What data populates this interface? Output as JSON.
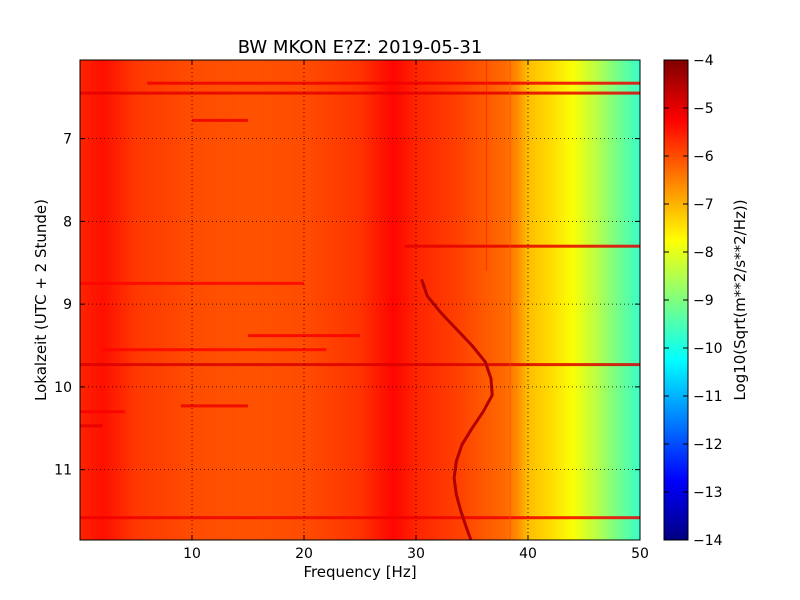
{
  "chart_data": {
    "type": "heatmap",
    "title": "BW MKON E?Z: 2019-05-31",
    "xlabel": "Frequency [Hz]",
    "ylabel": "Lokalzeit (UTC + 2 Stunde)",
    "colorbar_label": "Log10(Sqrt(m**2/s**2/Hz))",
    "xlim": [
      0,
      50
    ],
    "ylim": [
      11.85,
      6.05
    ],
    "y_inverted": true,
    "x_ticks": [
      10,
      20,
      30,
      40,
      50
    ],
    "x_tick_labels": [
      "10",
      "20",
      "30",
      "40",
      "50"
    ],
    "y_ticks": [
      7,
      8,
      9,
      10,
      11
    ],
    "y_tick_labels": [
      "7",
      "8",
      "9",
      "10",
      "11"
    ],
    "colorbar_range": [
      -14,
      -4
    ],
    "colorbar_ticks": [
      -4,
      -5,
      -6,
      -7,
      -8,
      -9,
      -10,
      -11,
      -12,
      -13,
      -14
    ],
    "colorbar_tick_labels": [
      "−4",
      "−5",
      "−6",
      "−7",
      "−8",
      "−9",
      "−10",
      "−11",
      "−12",
      "−13",
      "−14"
    ],
    "colormap": "jet",
    "grid": "dotted",
    "frequency_profile": [
      {
        "freq": 0,
        "value": -5.6
      },
      {
        "freq": 2,
        "value": -5.4
      },
      {
        "freq": 5,
        "value": -5.8
      },
      {
        "freq": 10,
        "value": -6.0
      },
      {
        "freq": 15,
        "value": -6.05
      },
      {
        "freq": 20,
        "value": -6.0
      },
      {
        "freq": 25,
        "value": -5.75
      },
      {
        "freq": 28,
        "value": -5.3
      },
      {
        "freq": 30,
        "value": -5.6
      },
      {
        "freq": 34,
        "value": -5.9
      },
      {
        "freq": 36,
        "value": -6.1
      },
      {
        "freq": 38,
        "value": -6.3
      },
      {
        "freq": 39,
        "value": -6.6
      },
      {
        "freq": 40,
        "value": -7.1
      },
      {
        "freq": 42,
        "value": -7.4
      },
      {
        "freq": 44,
        "value": -7.8
      },
      {
        "freq": 46,
        "value": -8.4
      },
      {
        "freq": 48,
        "value": -9.1
      },
      {
        "freq": 50,
        "value": -9.7
      }
    ],
    "wandering_line": [
      {
        "time": 8.7,
        "freq": 30.5
      },
      {
        "time": 8.9,
        "freq": 31.0
      },
      {
        "time": 9.1,
        "freq": 32.2
      },
      {
        "time": 9.3,
        "freq": 33.6
      },
      {
        "time": 9.5,
        "freq": 35.0
      },
      {
        "time": 9.7,
        "freq": 36.2
      },
      {
        "time": 9.9,
        "freq": 36.7
      },
      {
        "time": 10.1,
        "freq": 36.8
      },
      {
        "time": 10.3,
        "freq": 36.0
      },
      {
        "time": 10.5,
        "freq": 35.0
      },
      {
        "time": 10.7,
        "freq": 34.1
      },
      {
        "time": 10.9,
        "freq": 33.6
      },
      {
        "time": 11.1,
        "freq": 33.4
      },
      {
        "time": 11.3,
        "freq": 33.6
      },
      {
        "time": 11.5,
        "freq": 34.0
      },
      {
        "time": 11.7,
        "freq": 34.5
      },
      {
        "time": 11.85,
        "freq": 34.9
      }
    ],
    "narrowband_lines": [
      {
        "freq": 36.3,
        "time_start": 6.05,
        "time_end": 8.6,
        "value": -5.5
      },
      {
        "freq": 38.4,
        "time_start": 6.05,
        "time_end": 11.85,
        "value": -6.0
      }
    ],
    "broadband_bursts": [
      {
        "time": 6.33,
        "freq_start": 6,
        "freq_end": 50,
        "value": -5.1
      },
      {
        "time": 6.45,
        "freq_start": 0,
        "freq_end": 50,
        "value": -5.0
      },
      {
        "time": 6.78,
        "freq_start": 10,
        "freq_end": 15,
        "value": -5.1
      },
      {
        "time": 8.3,
        "freq_start": 29,
        "freq_end": 50,
        "value": -5.0
      },
      {
        "time": 8.75,
        "freq_start": 0,
        "freq_end": 20,
        "value": -5.3
      },
      {
        "time": 9.38,
        "freq_start": 15,
        "freq_end": 25,
        "value": -5.2
      },
      {
        "time": 9.55,
        "freq_start": 2,
        "freq_end": 22,
        "value": -5.3
      },
      {
        "time": 9.73,
        "freq_start": 0,
        "freq_end": 50,
        "value": -4.9
      },
      {
        "time": 10.23,
        "freq_start": 9,
        "freq_end": 15,
        "value": -5.1
      },
      {
        "time": 10.3,
        "freq_start": 0,
        "freq_end": 4,
        "value": -5.2
      },
      {
        "time": 10.47,
        "freq_start": 0,
        "freq_end": 2,
        "value": -5.0
      },
      {
        "time": 11.58,
        "freq_start": 0,
        "freq_end": 50,
        "value": -5.1
      }
    ]
  }
}
